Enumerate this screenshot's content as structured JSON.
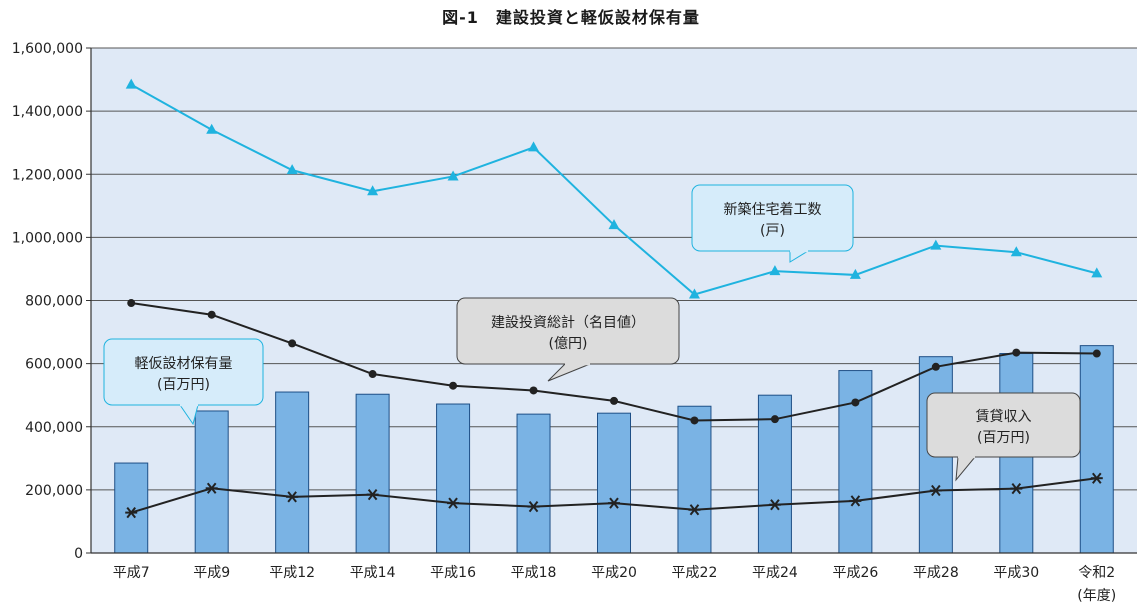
{
  "title": "図-1　建設投資と軽仮設材保有量",
  "colors": {
    "plot_bg": "#dfe9f6",
    "bar": "#7ab3e4",
    "bar_stroke": "#1e4f86",
    "housing": "#1fb3df",
    "black": "#222222",
    "callout_blue_fill": "#d6ecfa",
    "callout_blue_stroke": "#1fb3df",
    "callout_gray_fill": "#dcdcdc",
    "callout_gray_stroke": "#444444"
  },
  "chart_data": {
    "type": "bar",
    "title": "図-1　建設投資と軽仮設材保有量",
    "categories": [
      "平成7",
      "平成9",
      "平成12",
      "平成14",
      "平成16",
      "平成18",
      "平成20",
      "平成22",
      "平成24",
      "平成26",
      "平成28",
      "平成30",
      "令和2"
    ],
    "category_note": "(年度)",
    "ylim": [
      0,
      1600000
    ],
    "yticks": [
      0,
      200000,
      400000,
      600000,
      800000,
      1000000,
      1200000,
      1400000,
      1600000
    ],
    "ytick_labels": [
      "0",
      "200,000",
      "400,000",
      "600,000",
      "800,000",
      "1,000,000",
      "1,200,000",
      "1,400,000",
      "1,600,000"
    ],
    "grid": true,
    "series": [
      {
        "name": "軽仮設材保有量",
        "unit": "(百万円)",
        "type": "bar",
        "values": [
          285000,
          450000,
          510000,
          503000,
          472000,
          440000,
          443000,
          465000,
          500000,
          578000,
          622000,
          632000,
          657000
        ]
      },
      {
        "name": "新築住宅着工数",
        "unit": "(戸)",
        "type": "line",
        "marker": "triangle",
        "values": [
          1484000,
          1341000,
          1213000,
          1146000,
          1193000,
          1285000,
          1039000,
          819000,
          893000,
          881000,
          974000,
          953000,
          886000
        ]
      },
      {
        "name": "建設投資総計（名目値）",
        "unit": "(億円)",
        "type": "line",
        "marker": "circle",
        "values": [
          792000,
          755000,
          664000,
          567000,
          530000,
          515000,
          482000,
          420000,
          424000,
          477000,
          590000,
          635000,
          632000
        ]
      },
      {
        "name": "賃貸収入",
        "unit": "(百万円)",
        "type": "line",
        "marker": "asterisk",
        "values": [
          128000,
          205000,
          178000,
          185000,
          158000,
          147000,
          158000,
          137000,
          153000,
          165000,
          198000,
          204000,
          237000
        ]
      }
    ]
  }
}
